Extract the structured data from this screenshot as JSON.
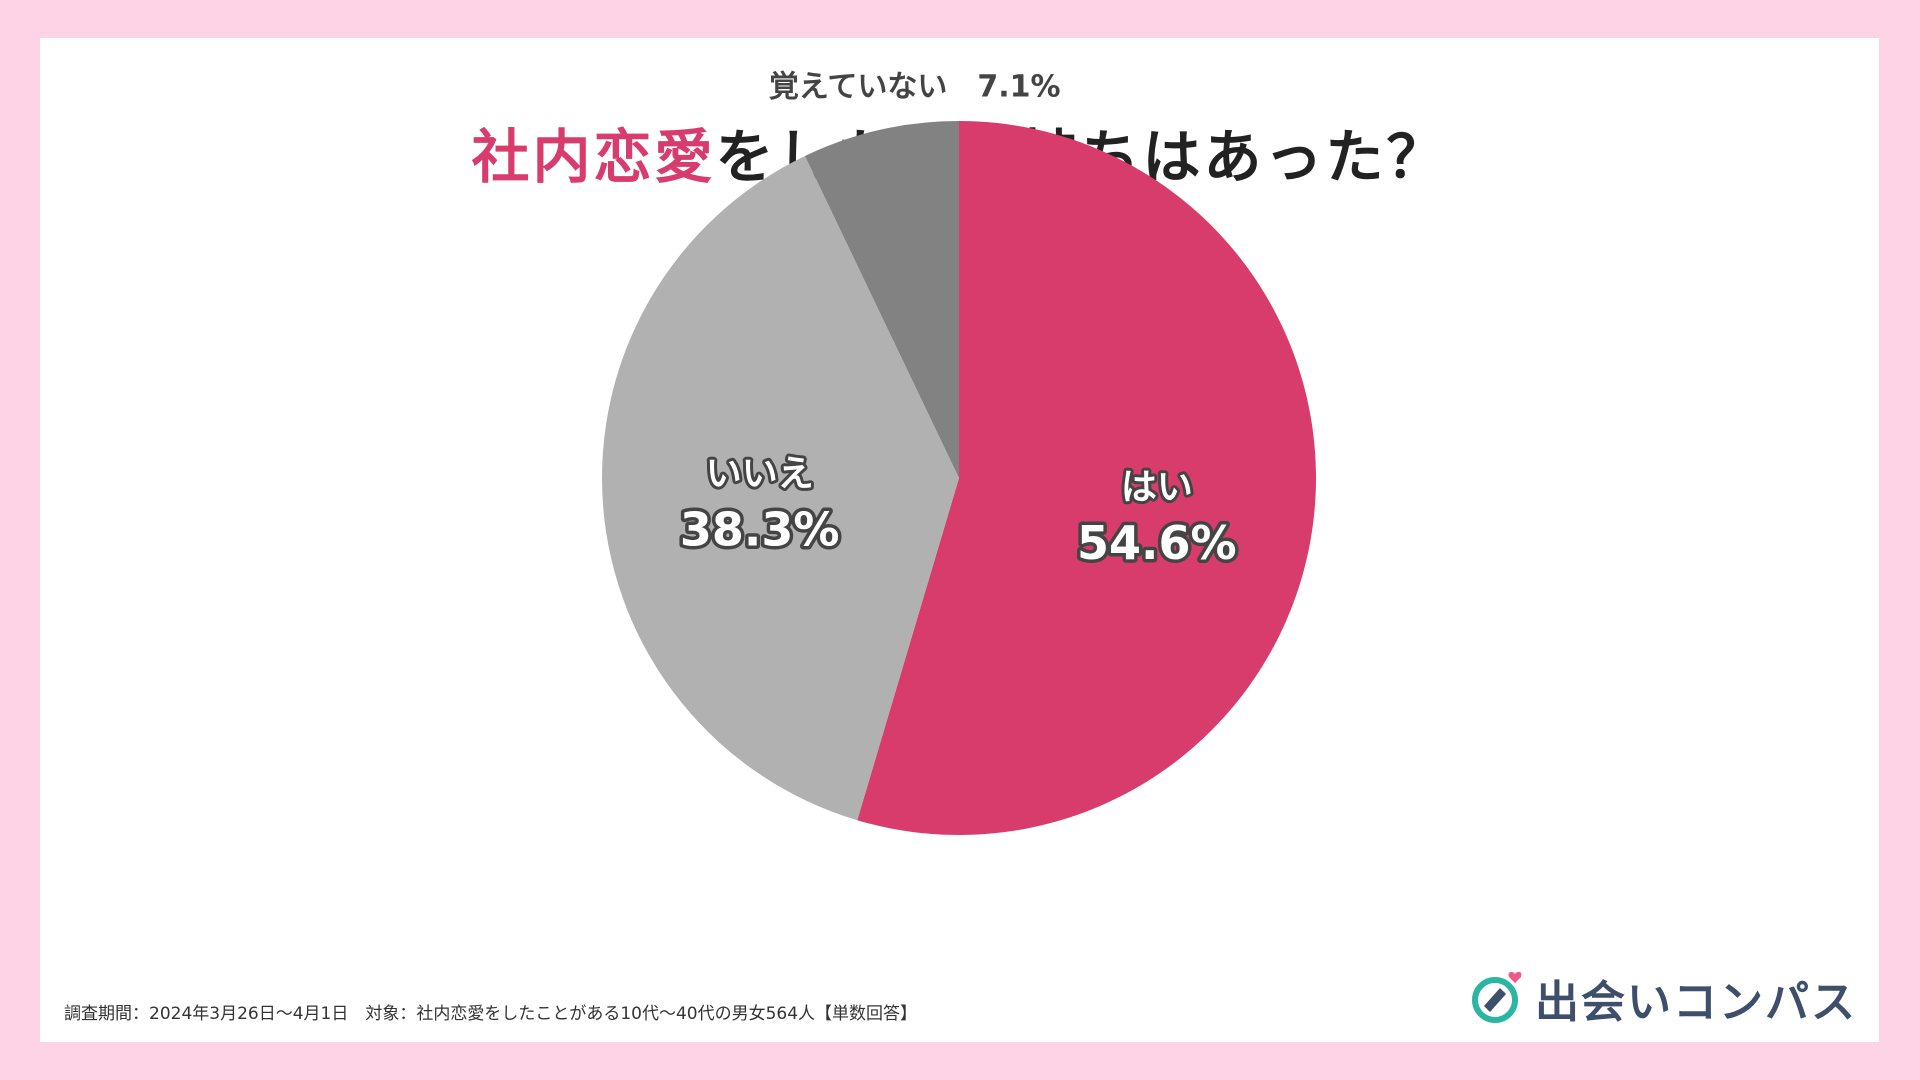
{
  "title": {
    "accent": "社内恋愛",
    "rest": "をしたい気持ちはあった？"
  },
  "chart_data": {
    "type": "pie",
    "start_angle_deg": 0,
    "direction": "clockwise",
    "slices": [
      {
        "label": "はい",
        "value": 54.6,
        "display": "54.6%",
        "color": "#d83c6d",
        "label_position": "inside"
      },
      {
        "label": "いいえ",
        "value": 38.3,
        "display": "38.3%",
        "color": "#b1b1b1",
        "label_position": "inside"
      },
      {
        "label": "覚えていない",
        "value": 7.1,
        "display": "7.1%",
        "color": "#828282",
        "label_position": "outside"
      }
    ]
  },
  "footnote": "調査期間：2024年3月26日〜4月1日　対象：社内恋愛をしたことがある10代〜40代の男女564人【単数回答】",
  "logo": {
    "text": "出会いコンパス",
    "icon": "compass-heart-icon",
    "colors": {
      "ring": "#2bb6a4",
      "needle": "#3d4f6b",
      "heart": "#f0588c"
    }
  }
}
